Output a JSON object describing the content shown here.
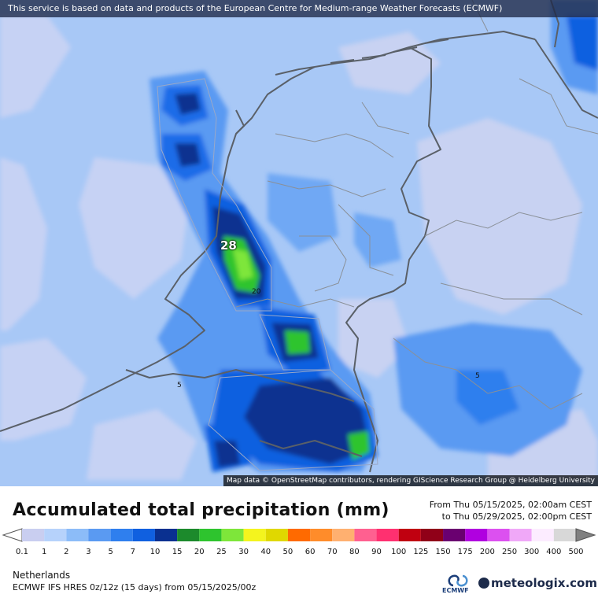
{
  "banner": {
    "text": "This service is based on data and products of the European Centre for Medium-range Weather Forecasts (ECMWF)"
  },
  "attribution": {
    "text": "Map data © OpenStreetMap contributors, rendering GIScience Research Group @ Heidelberg University"
  },
  "map": {
    "max_label": "28",
    "contour_labels": [
      "20",
      "5",
      "5"
    ]
  },
  "legend": {
    "title": "Accumulated total precipitation (mm)",
    "date_from": "From Thu 05/15/2025, 02:00am CEST",
    "date_to": "to Thu 05/29/2025, 02:00pm CEST",
    "ticks": [
      "0.1",
      "1",
      "2",
      "3",
      "5",
      "7",
      "10",
      "15",
      "20",
      "25",
      "30",
      "40",
      "50",
      "60",
      "70",
      "80",
      "90",
      "100",
      "125",
      "150",
      "175",
      "200",
      "250",
      "300",
      "400",
      "500"
    ],
    "colors": [
      "#c9cef0",
      "#b6d2fb",
      "#8cbcf8",
      "#5a9af2",
      "#2f7fee",
      "#1060e0",
      "#0a3090",
      "#1c8a2c",
      "#2ec42e",
      "#7ee63a",
      "#f4f41e",
      "#e0d800",
      "#ff6a00",
      "#ff8c2a",
      "#ffb070",
      "#ff6090",
      "#ff3070",
      "#c00010",
      "#900018",
      "#6a0070",
      "#b000e0",
      "#dc50f0",
      "#f0a8f8",
      "#fcecff",
      "#d8d8d8"
    ]
  },
  "footer": {
    "location": "Netherlands",
    "model": "ECMWF IFS HRES 0z/12z (15 days) from 05/15/2025/00z",
    "ecmwf_label": "ECMWF",
    "brand": "meteologix.com"
  }
}
